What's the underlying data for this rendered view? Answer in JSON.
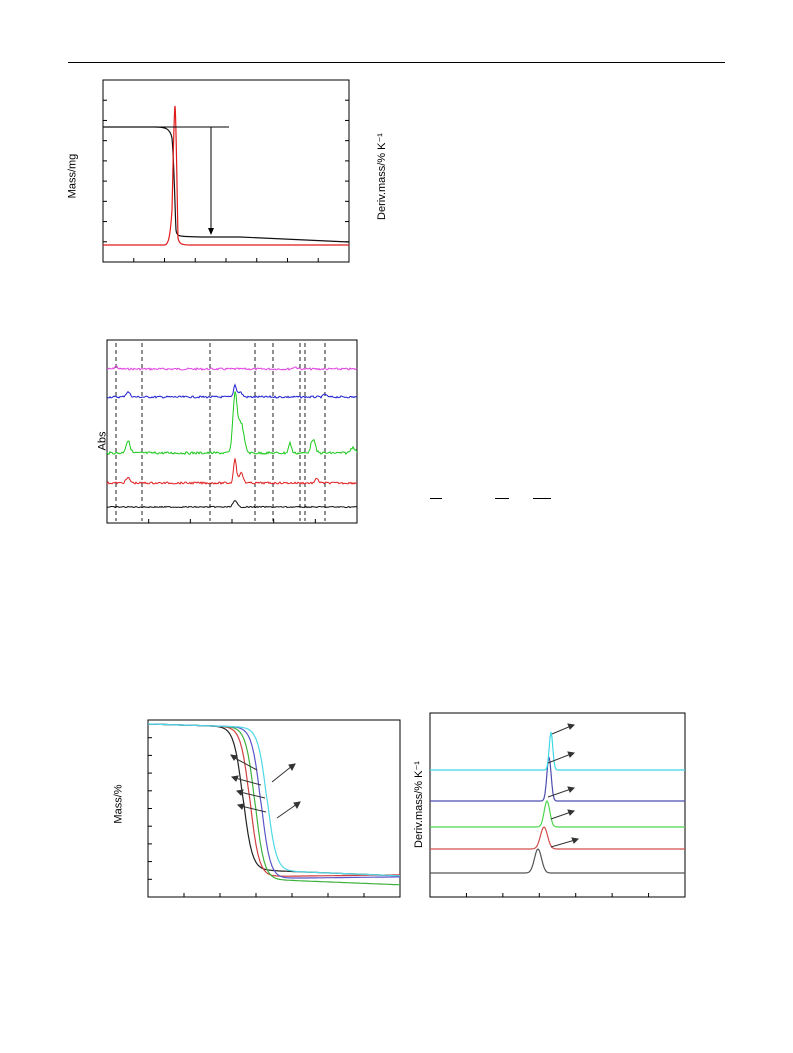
{
  "fig_top": {
    "ylabel_left": "Mass/mg",
    "ylabel_right": "Deriv.mass/% K⁻¹"
  },
  "fig_ftir": {
    "ylabel": "Abs",
    "trace_colors": [
      "#e040e0",
      "#1f1fd0",
      "#19c919",
      "#e01e1e",
      "#111111"
    ]
  },
  "fig_mass": {
    "ylabel": "Mass/%",
    "curve_colors": [
      "#222222",
      "#d04040",
      "#3fb23f",
      "#5a55c8",
      "#4fd8e6"
    ]
  },
  "fig_deriv": {
    "ylabel": "Deriv.mass/% K⁻¹",
    "trace_colors": [
      "#555555",
      "#d24e4e",
      "#4ed64e",
      "#4d4db0",
      "#3fd8e6"
    ]
  },
  "chart_data": [
    {
      "type": "line",
      "title": "",
      "ylabel": "Mass/mg",
      "y2label": "Deriv.mass/% K⁻¹"
    },
    {
      "type": "line",
      "title": "",
      "ylabel": "Abs"
    },
    {
      "type": "line",
      "title": "",
      "ylabel": "Mass/%"
    },
    {
      "type": "line",
      "title": "",
      "ylabel": "Deriv.mass/% K⁻¹"
    }
  ]
}
